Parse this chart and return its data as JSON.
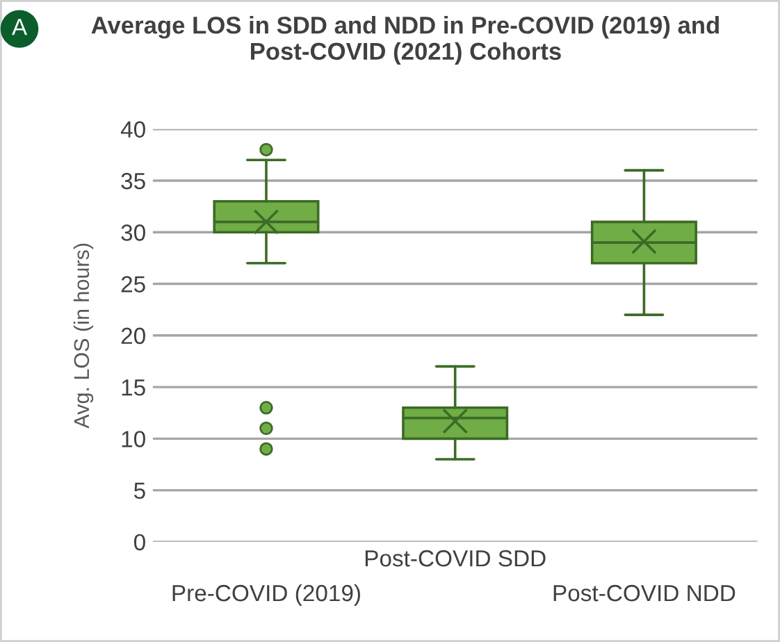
{
  "chart_data": {
    "type": "box",
    "title": "Average LOS in SDD and NDD in Pre-COVID (2019) and Post-COVID (2021) Cohorts",
    "ylabel": "Avg. LOS (in hours)",
    "annotations": [
      "A"
    ],
    "categories": [
      "Pre-COVID (2019)",
      "Post-COVID SDD",
      "Post-COVID NDD"
    ],
    "boxes": [
      {
        "low": 27,
        "q1": 30,
        "median": 31,
        "q3": 33,
        "high": 37,
        "mean": 31,
        "outliers": [
          38,
          13,
          11,
          9
        ]
      },
      {
        "low": 8,
        "q1": 10,
        "median": 12,
        "q3": 13,
        "high": 17,
        "mean": 11.7
      },
      {
        "low": 22,
        "q1": 27,
        "median": 29,
        "q3": 31,
        "high": 36,
        "mean": 29.1
      }
    ],
    "color": "#70ad47",
    "ylim": [
      0,
      40
    ],
    "yticks": [
      0,
      5,
      10,
      15,
      20,
      25,
      30,
      35,
      40
    ],
    "grid": "y",
    "legend": false
  }
}
